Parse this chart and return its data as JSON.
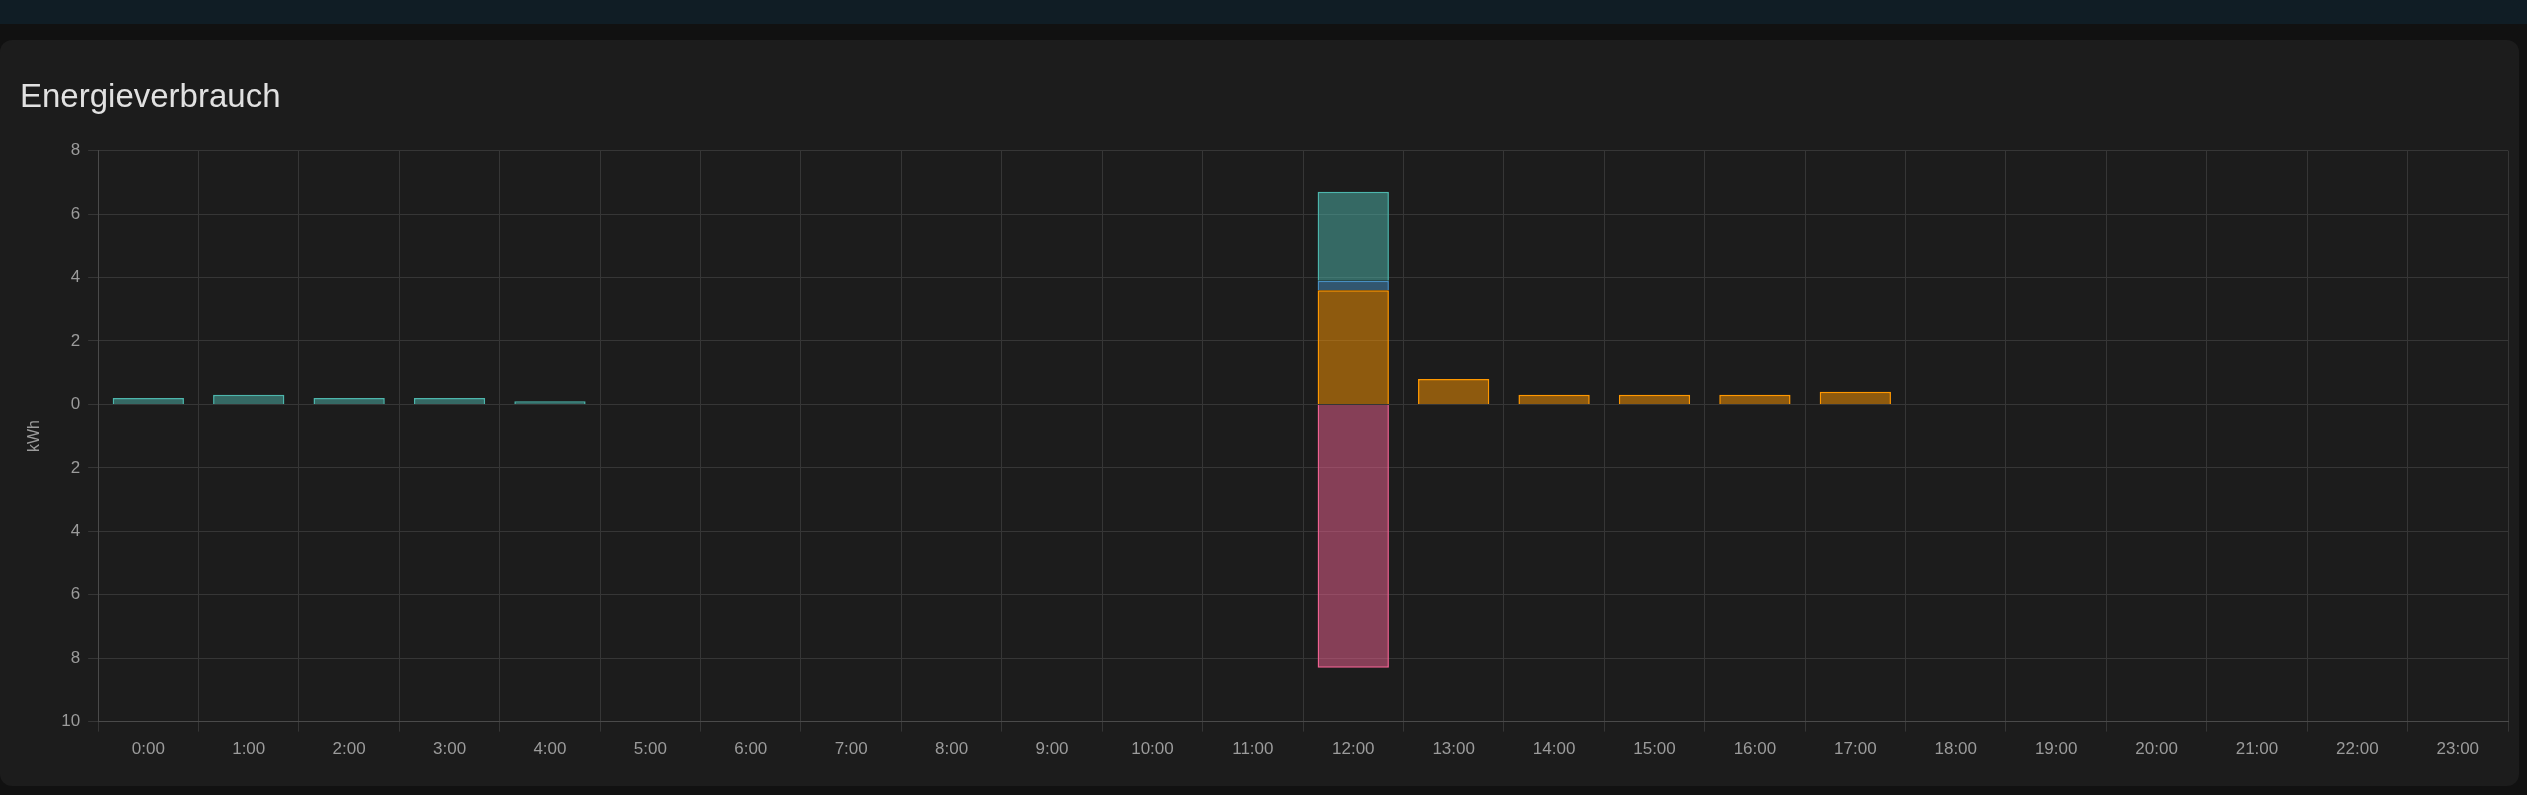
{
  "chart_data": {
    "type": "bar",
    "title": "Energieverbrauch",
    "ylabel": "kWh",
    "categories": [
      "0:00",
      "1:00",
      "2:00",
      "3:00",
      "4:00",
      "5:00",
      "6:00",
      "7:00",
      "8:00",
      "9:00",
      "10:00",
      "11:00",
      "12:00",
      "13:00",
      "14:00",
      "15:00",
      "16:00",
      "17:00",
      "18:00",
      "19:00",
      "20:00",
      "21:00",
      "22:00",
      "23:00"
    ],
    "stacked": true,
    "series": [
      {
        "color": "#ff9800",
        "values": [
          null,
          null,
          null,
          null,
          null,
          null,
          null,
          null,
          null,
          null,
          null,
          null,
          3.6,
          0.8,
          0.3,
          0.3,
          0.3,
          0.4,
          null,
          null,
          null,
          null,
          null,
          null
        ]
      },
      {
        "color": "#488fc2",
        "values": [
          null,
          null,
          null,
          null,
          null,
          null,
          null,
          null,
          null,
          null,
          null,
          null,
          0.3,
          null,
          null,
          null,
          null,
          null,
          null,
          null,
          null,
          null,
          null,
          null
        ]
      },
      {
        "color": "#4db6ac",
        "values": [
          0.2,
          0.3,
          0.2,
          0.2,
          0.1,
          null,
          null,
          null,
          null,
          null,
          null,
          null,
          2.8,
          null,
          null,
          null,
          null,
          null,
          null,
          null,
          null,
          null,
          null,
          null
        ]
      },
      {
        "color": "#f06292",
        "values": [
          null,
          null,
          null,
          null,
          null,
          null,
          null,
          null,
          null,
          null,
          null,
          null,
          -8.3,
          null,
          null,
          null,
          null,
          null,
          null,
          null,
          null,
          null,
          null,
          null
        ]
      }
    ],
    "ylim": [
      -10,
      8
    ],
    "yticks": [
      {
        "value": -10,
        "label": "10"
      },
      {
        "value": -8,
        "label": "8"
      },
      {
        "value": -6,
        "label": "6"
      },
      {
        "value": -4,
        "label": "4"
      },
      {
        "value": -2,
        "label": "2"
      },
      0,
      2,
      4,
      6,
      8
    ],
    "grid": true
  }
}
